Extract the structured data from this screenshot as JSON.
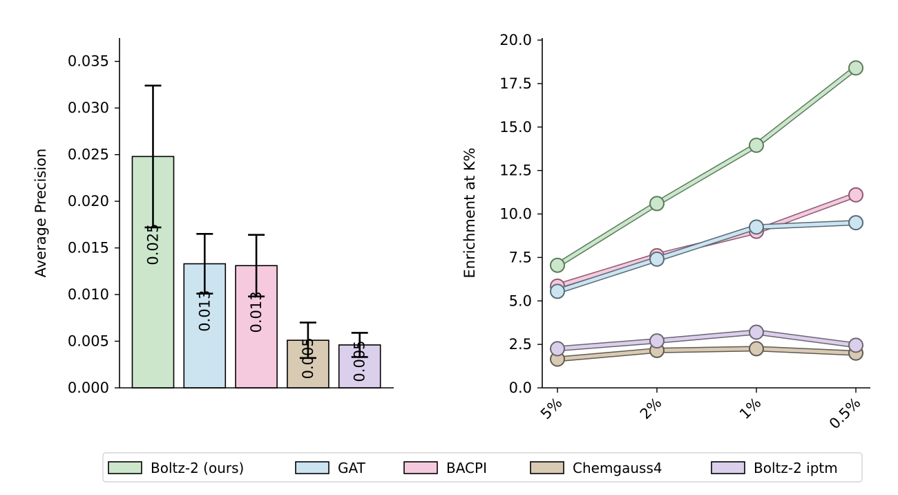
{
  "colors": {
    "series": [
      "#cce6cc",
      "#cce3f0",
      "#f5cade",
      "#d8cab3",
      "#dad0ec"
    ],
    "line_edge": [
      "#5a7a5a",
      "#566a78",
      "#8a5a6e",
      "#5f5a50",
      "#6b6470"
    ]
  },
  "legend": {
    "items": [
      "Boltz-2 (ours)",
      "GAT",
      "BACPI",
      "Chemgauss4",
      "Boltz-2 iptm"
    ]
  },
  "chart_data": [
    {
      "type": "bar",
      "title": "",
      "xlabel": "",
      "ylabel": "Average Precision",
      "ylim": [
        0,
        0.0375
      ],
      "yticks": [
        "0.000",
        "0.005",
        "0.010",
        "0.015",
        "0.020",
        "0.025",
        "0.030",
        "0.035"
      ],
      "categories": [
        "Boltz-2 (ours)",
        "GAT",
        "BACPI",
        "Chemgauss4",
        "Boltz-2 iptm"
      ],
      "values": [
        0.0248,
        0.0133,
        0.0131,
        0.0051,
        0.0046
      ],
      "errors": [
        0.0076,
        0.0032,
        0.0033,
        0.0019,
        0.0013
      ],
      "data_labels": [
        "0.025",
        "0.013",
        "0.013",
        "0.005",
        "0.005"
      ]
    },
    {
      "type": "line",
      "title": "",
      "xlabel": "",
      "ylabel": "Enrichment at K%",
      "ylim": [
        0,
        20
      ],
      "yticks": [
        "0.0",
        "2.5",
        "5.0",
        "7.5",
        "10.0",
        "12.5",
        "15.0",
        "17.5",
        "20.0"
      ],
      "categories": [
        "5%",
        "2%",
        "1%",
        "0.5%"
      ],
      "series": [
        {
          "name": "Boltz-2 (ours)",
          "values": [
            7.05,
            10.6,
            13.95,
            18.4
          ]
        },
        {
          "name": "GAT",
          "values": [
            5.55,
            7.4,
            9.25,
            9.5
          ]
        },
        {
          "name": "BACPI",
          "values": [
            5.85,
            7.6,
            9.0,
            11.1
          ]
        },
        {
          "name": "Chemgauss4",
          "values": [
            1.65,
            2.15,
            2.25,
            2.0
          ]
        },
        {
          "name": "Boltz-2 iptm",
          "values": [
            2.25,
            2.7,
            3.2,
            2.45
          ]
        }
      ]
    }
  ]
}
